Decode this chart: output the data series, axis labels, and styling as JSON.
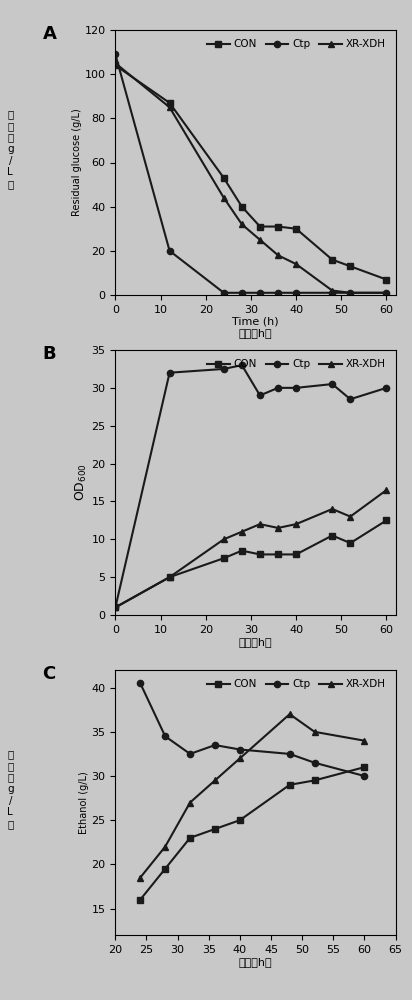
{
  "A": {
    "title_label": "A",
    "xlim": [
      0,
      62
    ],
    "ylim": [
      0,
      120
    ],
    "xticks": [
      0,
      10,
      20,
      30,
      40,
      50,
      60
    ],
    "yticks": [
      0,
      20,
      40,
      60,
      80,
      100,
      120
    ],
    "CON": {
      "x": [
        0,
        12,
        24,
        28,
        32,
        36,
        40,
        48,
        52,
        60
      ],
      "y": [
        104,
        87,
        53,
        40,
        31,
        31,
        30,
        16,
        13,
        7
      ]
    },
    "Ctp": {
      "x": [
        0,
        12,
        24,
        28,
        32,
        36,
        40,
        48,
        52,
        60
      ],
      "y": [
        109,
        20,
        1,
        1,
        1,
        1,
        1,
        1,
        1,
        1
      ]
    },
    "XR-XDH": {
      "x": [
        0,
        12,
        24,
        28,
        32,
        36,
        40,
        48,
        52,
        60
      ],
      "y": [
        105,
        85,
        44,
        32,
        25,
        18,
        14,
        2,
        1,
        1
      ]
    }
  },
  "B": {
    "title_label": "B",
    "xlim": [
      0,
      62
    ],
    "ylim": [
      0,
      35
    ],
    "xticks": [
      0,
      10,
      20,
      30,
      40,
      50,
      60
    ],
    "yticks": [
      0,
      5,
      10,
      15,
      20,
      25,
      30,
      35
    ],
    "CON": {
      "x": [
        0,
        12,
        24,
        28,
        32,
        36,
        40,
        48,
        52,
        60
      ],
      "y": [
        1,
        5,
        7.5,
        8.5,
        8,
        8,
        8,
        10.5,
        9.5,
        12.5
      ]
    },
    "Ctp": {
      "x": [
        0,
        12,
        24,
        28,
        32,
        36,
        40,
        48,
        52,
        60
      ],
      "y": [
        1,
        32,
        32.5,
        33,
        29,
        30,
        30,
        30.5,
        28.5,
        30
      ]
    },
    "XR-XDH": {
      "x": [
        0,
        12,
        24,
        28,
        32,
        36,
        40,
        48,
        52,
        60
      ],
      "y": [
        1,
        5,
        10,
        11,
        12,
        11.5,
        12,
        14,
        13,
        16.5
      ]
    }
  },
  "C": {
    "title_label": "C",
    "xlim": [
      20,
      65
    ],
    "ylim": [
      12,
      42
    ],
    "xticks": [
      20,
      25,
      30,
      35,
      40,
      45,
      50,
      55,
      60,
      65
    ],
    "yticks": [
      15,
      20,
      25,
      30,
      35,
      40
    ],
    "CON": {
      "x": [
        24,
        28,
        32,
        36,
        40,
        48,
        52,
        60
      ],
      "y": [
        16,
        19.5,
        23,
        24,
        25,
        29,
        29.5,
        31
      ]
    },
    "Ctp": {
      "x": [
        24,
        28,
        32,
        36,
        40,
        48,
        52,
        60
      ],
      "y": [
        40.5,
        34.5,
        32.5,
        33.5,
        33,
        32.5,
        31.5,
        30
      ]
    },
    "XR-XDH": {
      "x": [
        24,
        28,
        32,
        36,
        40,
        48,
        52,
        60
      ],
      "y": [
        18.5,
        22,
        27,
        29.5,
        32,
        37,
        35,
        34
      ]
    }
  },
  "line_color": "#1a1a1a",
  "marker_CON": "s",
  "marker_Ctp": "o",
  "marker_XRXDH": "^",
  "markersize": 4.5,
  "linewidth": 1.5,
  "bg_color": "#c8c8c8"
}
